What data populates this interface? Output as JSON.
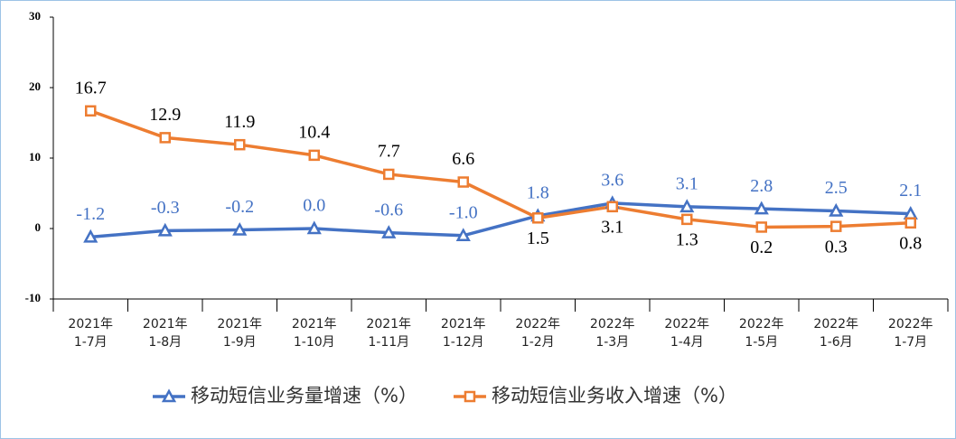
{
  "chart_data": {
    "type": "line",
    "categories": [
      "2021年\n1-7月",
      "2021年\n1-8月",
      "2021年\n1-9月",
      "2021年\n1-10月",
      "2021年\n1-11月",
      "2021年\n1-12月",
      "2022年\n1-2月",
      "2022年\n1-3月",
      "2022年\n1-4月",
      "2022年\n1-5月",
      "2022年\n1-6月",
      "2022年\n1-7月"
    ],
    "series": [
      {
        "name": "移动短信业务量增速（%）",
        "color": "#4472c4",
        "marker": "triangle",
        "values": [
          -1.2,
          -0.3,
          -0.2,
          0.0,
          -0.6,
          -1.0,
          1.8,
          3.6,
          3.1,
          2.8,
          2.5,
          2.1
        ],
        "value_labels": [
          "-1.2",
          "-0.3",
          "-0.2",
          "0.0",
          "-0.6",
          "-1.0",
          "1.8",
          "3.6",
          "3.1",
          "2.8",
          "2.5",
          "2.1"
        ]
      },
      {
        "name": "移动短信业务收入增速（%）",
        "color": "#ed7d31",
        "marker": "square",
        "values": [
          16.7,
          12.9,
          11.9,
          10.4,
          7.7,
          6.6,
          1.5,
          3.1,
          1.3,
          0.2,
          0.3,
          0.8
        ],
        "value_labels": [
          "16.7",
          "12.9",
          "11.9",
          "10.4",
          "7.7",
          "6.6",
          "1.5",
          "3.1",
          "1.3",
          "0.2",
          "0.3",
          "0.8"
        ]
      }
    ],
    "ylim": [
      -10,
      30
    ],
    "yticks": [
      30,
      20,
      10,
      0,
      -10
    ],
    "grid": false,
    "legend": "bottom"
  }
}
